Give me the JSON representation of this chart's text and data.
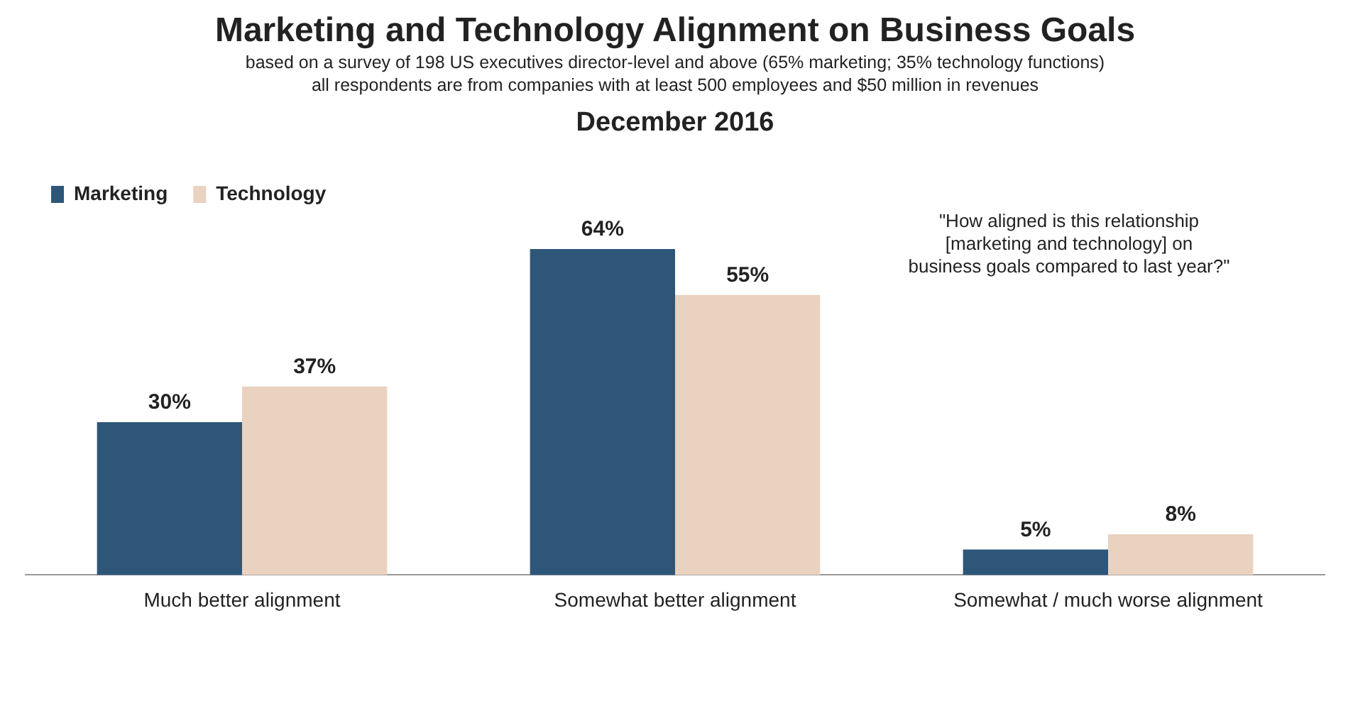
{
  "chart_data": {
    "type": "bar",
    "title": "Marketing and Technology Alignment on Business Goals",
    "subtitle": "based on a survey of 198 US executives director-level and above (65% marketing; 35% technology functions)\nall respondents are from companies with at least 500 employees and $50 million in revenues",
    "annotations": [
      "December 2016",
      "\"How aligned is this relationship\n[marketing and technology] on\nbusiness goals compared to last year?\""
    ],
    "categories": [
      "Much better alignment",
      "Somewhat better alignment",
      "Somewhat / much worse alignment"
    ],
    "series": [
      {
        "name": "Marketing",
        "color": "#2d5679",
        "values": [
          30,
          64,
          5
        ],
        "value_labels": [
          "30%",
          "64%",
          "5%"
        ]
      },
      {
        "name": "Technology",
        "color": "#ead2c0",
        "values": [
          37,
          55,
          8
        ],
        "value_labels": [
          "37%",
          "55%",
          "8%"
        ]
      }
    ],
    "legend": "top left",
    "grid": false
  }
}
